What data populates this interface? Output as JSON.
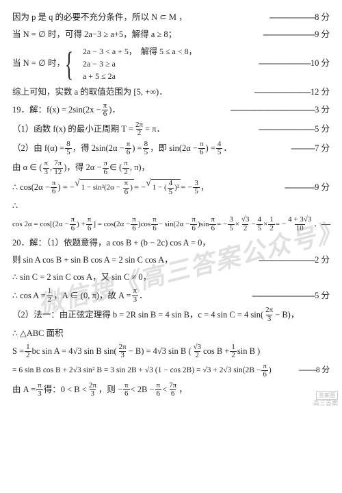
{
  "watermark": "微信搜《高三答案公众号》",
  "corner_label1": "答案圈",
  "corner_label2": "高三答案",
  "l1_a": "因为 p 是 q 的必要不充分条件，所以 N ⊂ M ，",
  "l1_dash": "---------------------",
  "l1_pts": "8 分",
  "l2_a": "当 N = ∅ 时，可得 2a−3 ≥ a+5，解得 a ≥ 8；",
  "l2_dash": "------------------------",
  "l2_pts": "9 分",
  "l3_a": "当 N = ∅ 时，",
  "l3_c1": "2a − 3 < a + 5，",
  "l3_c1b": "解得 5 ≤ a < 8，",
  "l3_c2": "2a − 3 ≥ a",
  "l3_c3": "a + 5 ≤ 2a",
  "l3_dash": "------------------------",
  "l3_pts": "10 分",
  "l4_a": "综上可知，实数 a 的取值范围为 [5, +∞)．",
  "l4_dash": "--------------------------",
  "l4_pts": "12 分",
  "l5_a": "19．解：f(x) = 2sin(2x − ",
  "l5_num": "π",
  "l5_den": "6",
  "l5_b": ")．",
  "l5_dash": "---------------------------------------",
  "l5_pts": "3 分",
  "l6_a": "（1）函数 f(x) 的最小正周期 T = ",
  "l6_num": "2π",
  "l6_den": "2",
  "l6_b": " = π．",
  "l6_dash": "--------------------------",
  "l6_pts": "5 分",
  "l7_a": "（2）由 f(α) = ",
  "l7_f1n": "8",
  "l7_f1d": "5",
  "l7_b": "，得 2sin(2α − ",
  "l7_f2n": "π",
  "l7_f2d": "6",
  "l7_c": ") = ",
  "l7_f3n": "8",
  "l7_f3d": "5",
  "l7_d": "，即 sin(2α − ",
  "l7_f4n": "π",
  "l7_f4d": "6",
  "l7_e": ") = ",
  "l7_f5n": "4",
  "l7_f5d": "5",
  "l7_f": "．",
  "l7_dash": "-----------",
  "l7_pts": "7 分",
  "l8_a": "由 α ∈ (",
  "l8_f1n": "π",
  "l8_f1d": "3",
  "l8_b": ", ",
  "l8_f2n": "7π",
  "l8_f2d": "12",
  "l8_c": ")，得 2α − ",
  "l8_f3n": "π",
  "l8_f3d": "6",
  "l8_d": " ∈ (",
  "l8_f4n": "π",
  "l8_f4d": "2",
  "l8_e": ", π)，",
  "l9_a": "∴ cos(2α − ",
  "l9_f1n": "π",
  "l9_f1d": "6",
  "l9_b": ") = −",
  "l9_sq1": "1 − sin²(2α − ",
  "l9_sq1b": ")",
  "l9_c": " = −",
  "l9_sq2a": "1 − (",
  "l9_sq2n": "4",
  "l9_sq2d": "5",
  "l9_sq2b": ")²",
  "l9_d": " = −",
  "l9_f2n": "3",
  "l9_f2d": "5",
  "l9_e": "，",
  "l9_dash": "--------------",
  "l9_pts": "9 分",
  "l10_a": "∴",
  "l11_a": "cos 2α = cos[(2α − ",
  "l11_f1n": "π",
  "l11_f1d": "6",
  "l11_b": ") + ",
  "l11_f2n": "π",
  "l11_f2d": "6",
  "l11_c": "] = cos(2α − ",
  "l11_d": ")cos",
  "l11_e": " − sin(2α − ",
  "l11_f": ")sin",
  "l11_g": " = −",
  "l11_g1n": "3",
  "l11_g1d": "5",
  "l11_h": " × ",
  "l11_h1n": "√3",
  "l11_h1d": "2",
  "l11_i": " − ",
  "l11_i1n": "4",
  "l11_i1d": "5",
  "l11_j": " × ",
  "l11_j1n": "1",
  "l11_j1d": "2",
  "l11_k": " = −",
  "l11_k1n": "4 + 3√3",
  "l11_k1d": "10",
  "l11_l": "．",
  "l11_dash": "-----",
  "l12_a": "20．解：（1）依题意得，a cos B + (b − 2c) cos A = 0，",
  "l13_a": "则 sin A cos B + sin B cos A = 2 sin C cos A，",
  "l13_dash": "--------------------------",
  "l13_pts": "2 分",
  "l14_a": "∴ sin C = 2 sin C cos A，又 sin C ≠ 0，",
  "l15_a": "∴ cos A = ",
  "l15_f1n": "1",
  "l15_f1d": "2",
  "l15_b": "，A ∈ (0, π)，故 A = ",
  "l15_f2n": "π",
  "l15_f2d": "3",
  "l15_c": "．",
  "l15_dash": "-----------------------------",
  "l15_pts": "5 分",
  "l16_a": "（2）法一：由正弦定理得 b = 2R sin B = 4 sin B，c = 4 sin C = 4 sin(",
  "l16_f1n": "2π",
  "l16_f1d": "3",
  "l16_b": " − B)，",
  "l17_a": "∴ △ABC 面积",
  "l18_a": "S = ",
  "l18_f1n": "1",
  "l18_f1d": "2",
  "l18_b": " bc sin A = 4√3 sin B sin(",
  "l18_f2n": "2π",
  "l18_f2d": "3",
  "l18_c": " − B) = 4√3 sin B (",
  "l18_f3n": "√3",
  "l18_f3d": "2",
  "l18_d": " cos B + ",
  "l18_f4n": "1",
  "l18_f4d": "2",
  "l18_e": " sin B )",
  "l19_a": "= 6 sin B cos B + 2√3 sin² B = 3 sin 2B + √3 (1 − cos 2B) = √3 + 2√3 sin(2B − ",
  "l19_f1n": "π",
  "l19_f1d": "6",
  "l19_b": ")",
  "l19_dash": "---------",
  "l19_pts": "8 分",
  "l20_a": "由 A = ",
  "l20_f1n": "π",
  "l20_f1d": "3",
  "l20_b": " 得：0 < B < ",
  "l20_f2n": "2π",
  "l20_f2d": "3",
  "l20_c": "，则 −",
  "l20_f3n": "π",
  "l20_f3d": "6",
  "l20_d": " < 2B − ",
  "l20_f4n": "π",
  "l20_f4d": "6",
  "l20_e": " < ",
  "l20_f5n": "7π",
  "l20_f5d": "6",
  "l20_f": "，"
}
